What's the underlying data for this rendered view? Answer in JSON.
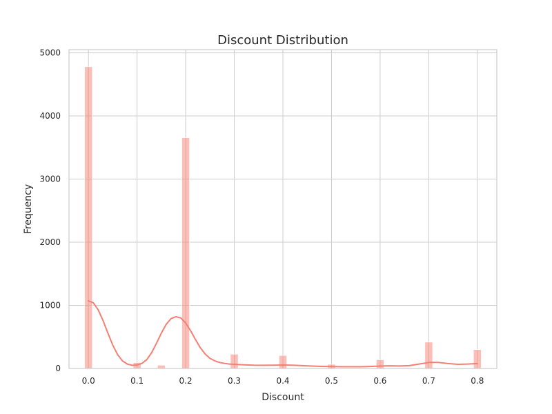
{
  "chart_data": {
    "type": "bar",
    "title": "Discount Distribution",
    "xlabel": "Discount",
    "ylabel": "Frequency",
    "xlim": [
      -0.04,
      0.84
    ],
    "ylim": [
      0,
      5050
    ],
    "grid": true,
    "x_ticks": [
      0.0,
      0.1,
      0.2,
      0.3,
      0.4,
      0.5,
      0.6,
      0.7,
      0.8
    ],
    "x_tick_labels": [
      "0.0",
      "0.1",
      "0.2",
      "0.3",
      "0.4",
      "0.5",
      "0.6",
      "0.7",
      "0.8"
    ],
    "y_ticks": [
      0,
      1000,
      2000,
      3000,
      4000,
      5000
    ],
    "y_tick_labels": [
      "0",
      "1000",
      "2000",
      "3000",
      "4000",
      "5000"
    ],
    "bar_color": "#fa8072",
    "kde_color": "#f47f72",
    "bin_width": 0.016,
    "bins": [
      {
        "x": 0.0,
        "value": 4780
      },
      {
        "x": 0.1,
        "value": 94
      },
      {
        "x": 0.15,
        "value": 52
      },
      {
        "x": 0.2,
        "value": 3655
      },
      {
        "x": 0.3,
        "value": 227
      },
      {
        "x": 0.4,
        "value": 206
      },
      {
        "x": 0.5,
        "value": 66
      },
      {
        "x": 0.6,
        "value": 138
      },
      {
        "x": 0.7,
        "value": 418
      },
      {
        "x": 0.8,
        "value": 300
      }
    ],
    "kde": {
      "x": [
        0.0,
        0.01,
        0.02,
        0.03,
        0.04,
        0.05,
        0.06,
        0.07,
        0.08,
        0.09,
        0.1,
        0.11,
        0.12,
        0.13,
        0.14,
        0.15,
        0.16,
        0.17,
        0.18,
        0.19,
        0.2,
        0.21,
        0.22,
        0.23,
        0.24,
        0.25,
        0.26,
        0.27,
        0.28,
        0.29,
        0.3,
        0.32,
        0.34,
        0.36,
        0.38,
        0.4,
        0.42,
        0.44,
        0.46,
        0.48,
        0.5,
        0.52,
        0.54,
        0.56,
        0.58,
        0.6,
        0.62,
        0.64,
        0.66,
        0.68,
        0.7,
        0.72,
        0.74,
        0.76,
        0.78,
        0.8
      ],
      "y": [
        1070,
        1040,
        930,
        760,
        560,
        370,
        220,
        120,
        70,
        50,
        55,
        80,
        140,
        250,
        400,
        560,
        700,
        790,
        820,
        800,
        720,
        600,
        460,
        330,
        230,
        160,
        120,
        95,
        80,
        70,
        65,
        58,
        52,
        50,
        52,
        55,
        52,
        45,
        38,
        33,
        30,
        28,
        27,
        28,
        32,
        38,
        42,
        40,
        45,
        70,
        95,
        95,
        78,
        65,
        70,
        78
      ]
    }
  }
}
